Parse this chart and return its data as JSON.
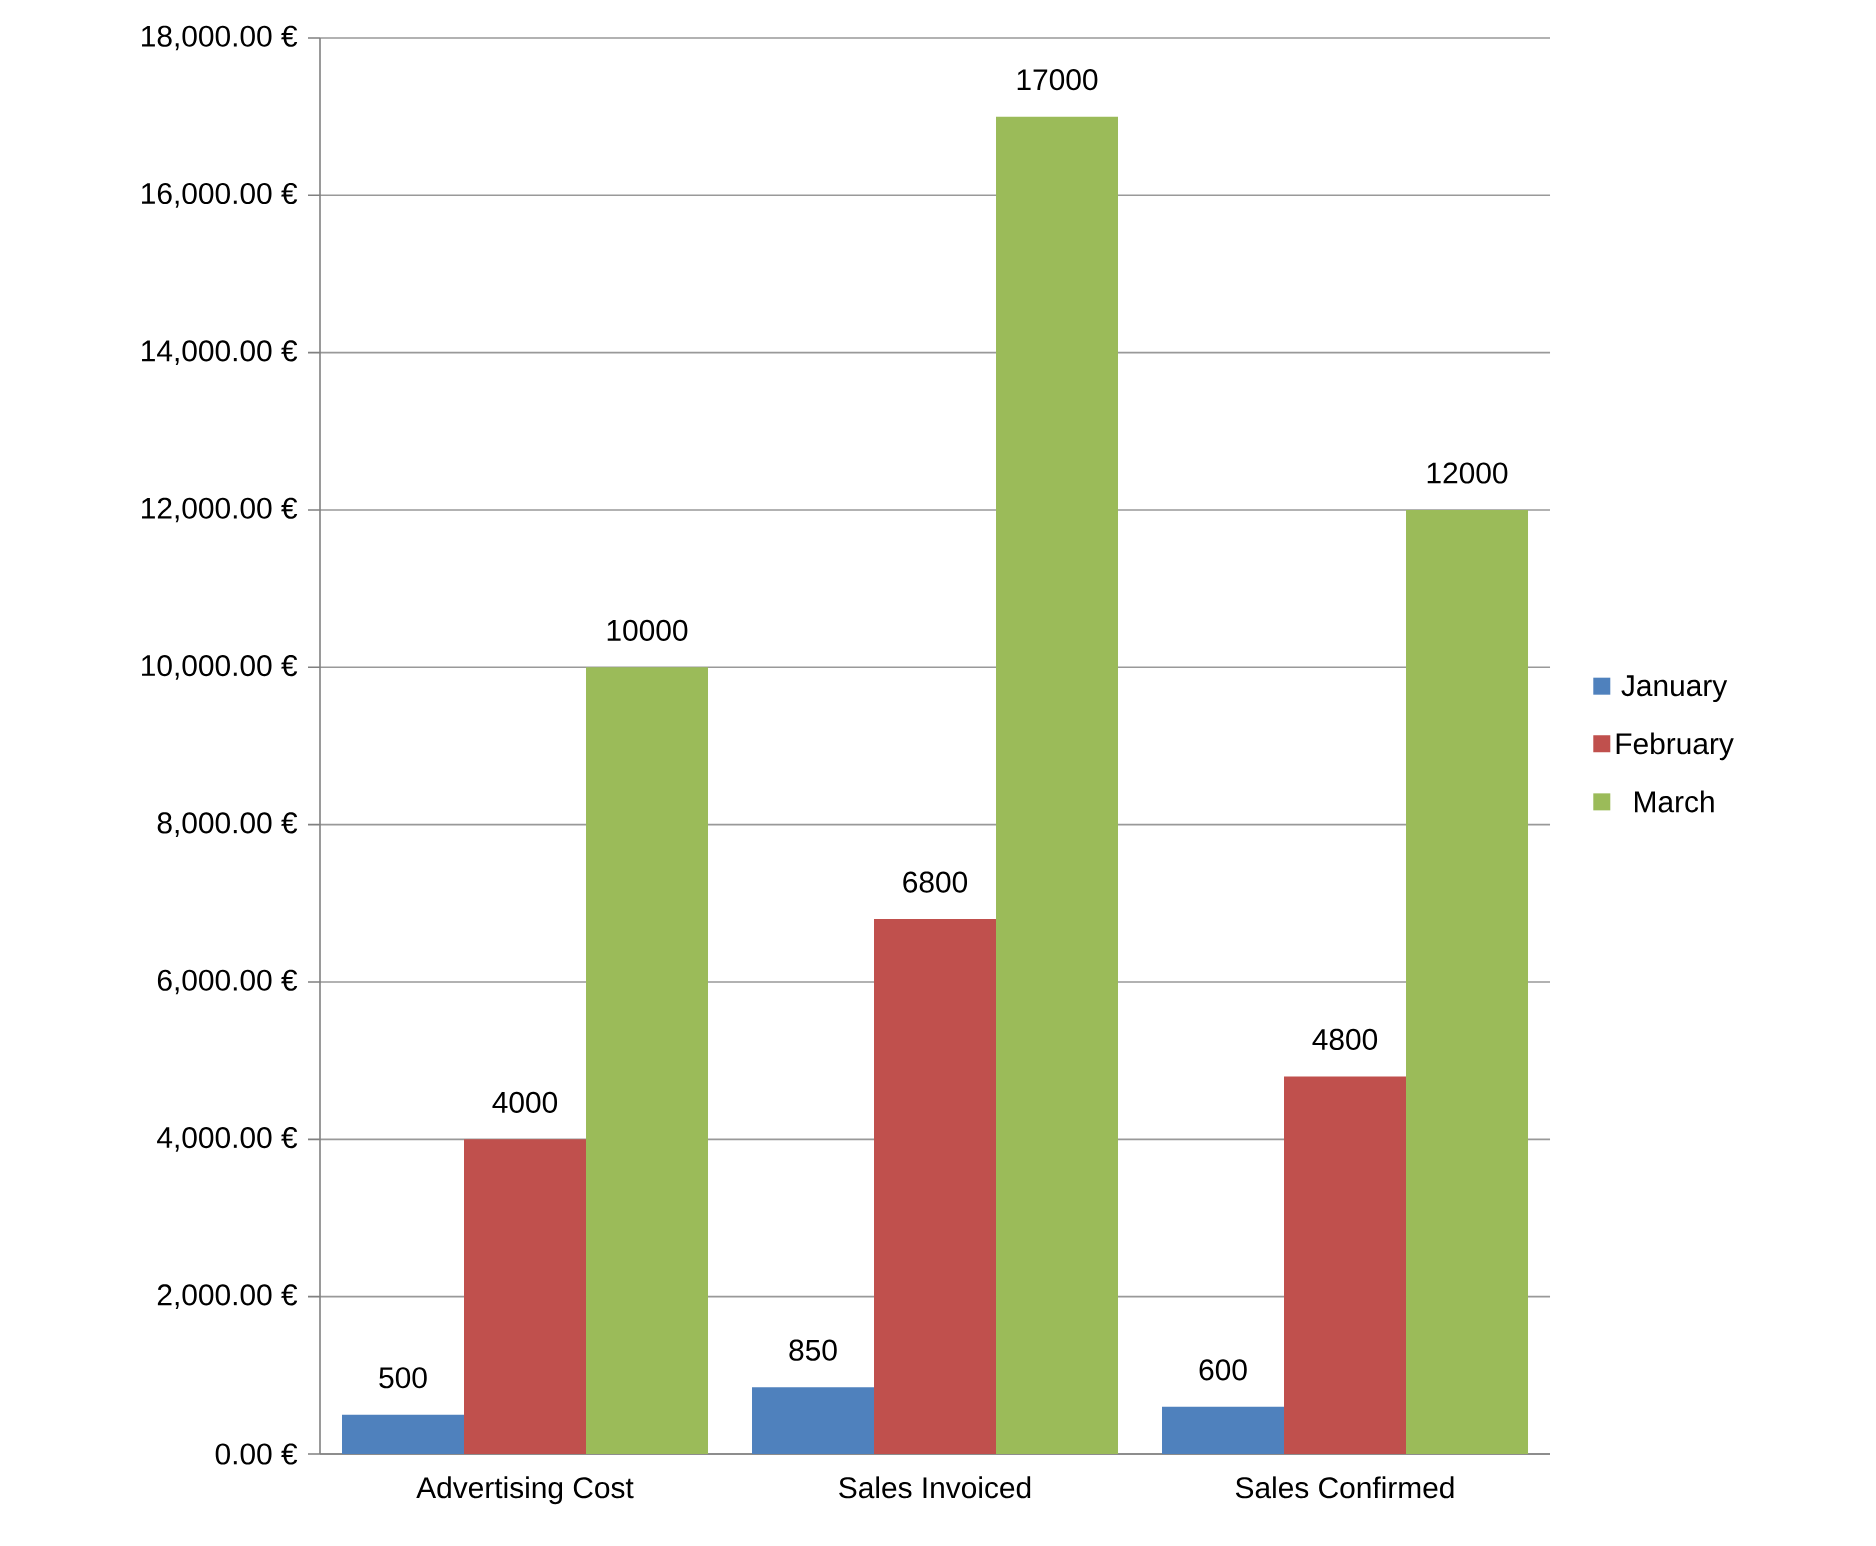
{
  "chart_data": {
    "type": "bar",
    "categories": [
      "Advertising Cost",
      "Sales Invoiced",
      "Sales Confirmed"
    ],
    "series": [
      {
        "name": "January",
        "color": "#4f81bd",
        "values": [
          500,
          850,
          600
        ]
      },
      {
        "name": "February",
        "color": "#c0504d",
        "values": [
          4000,
          6800,
          4800
        ]
      },
      {
        "name": "March",
        "color": "#9bbb59",
        "values": [
          10000,
          17000,
          12000
        ]
      }
    ],
    "ylim": [
      0,
      18000
    ],
    "yticks": [
      {
        "value": 0,
        "label": "0.00 €"
      },
      {
        "value": 2000,
        "label": "2,000.00 €"
      },
      {
        "value": 4000,
        "label": "4,000.00 €"
      },
      {
        "value": 6000,
        "label": "6,000.00 €"
      },
      {
        "value": 8000,
        "label": "8,000.00 €"
      },
      {
        "value": 10000,
        "label": "10,000.00 €"
      },
      {
        "value": 12000,
        "label": "12,000.00 €"
      },
      {
        "value": 14000,
        "label": "14,000.00 €"
      },
      {
        "value": 16000,
        "label": "16,000.00 €"
      },
      {
        "value": 18000,
        "label": "18,000.00 €"
      }
    ],
    "grid": "y",
    "legend": "right",
    "data_labels": true
  }
}
